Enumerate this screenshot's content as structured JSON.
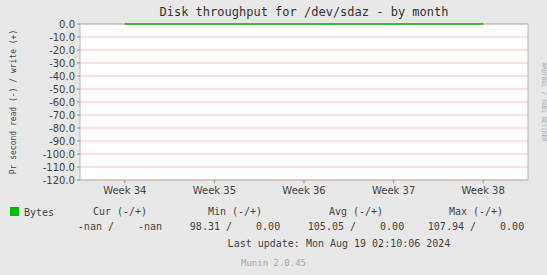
{
  "chart_data": {
    "type": "line",
    "title": "Disk throughput for /dev/sdaz - by month",
    "y_label": "Pr second read (-) / write (+)",
    "categories": [
      "Week 34",
      "Week 35",
      "Week 36",
      "Week 37",
      "Week 38"
    ],
    "series": [
      {
        "name": "Bytes",
        "color": "#00bb00",
        "values": [
          0,
          0,
          0,
          0,
          0
        ]
      }
    ],
    "ylim": [
      -120,
      0
    ],
    "yticks": [
      {
        "value": 0,
        "label": "0.0"
      },
      {
        "value": -10,
        "label": "-10.0"
      },
      {
        "value": -20,
        "label": "-20.0"
      },
      {
        "value": -30,
        "label": "-30.0"
      },
      {
        "value": -40,
        "label": "-40.0"
      },
      {
        "value": -50,
        "label": "-50.0"
      },
      {
        "value": -60,
        "label": "-60.0"
      },
      {
        "value": -70,
        "label": "-70.0"
      },
      {
        "value": -80,
        "label": "-80.0"
      },
      {
        "value": -90,
        "label": "-90.0"
      },
      {
        "value": -100,
        "label": "-100.0"
      },
      {
        "value": -110,
        "label": "-110.0"
      },
      {
        "value": -120,
        "label": "-120.0"
      }
    ],
    "grid": true,
    "side_label": "RRDTOOL / TOBI OETIKER",
    "stats": {
      "headers": [
        "Cur (-/+)",
        "Min (-/+)",
        "Avg (-/+)",
        "Max (-/+)"
      ],
      "values": [
        "-nan /    -nan",
        "98.31 /    0.00",
        "105.05 /    0.00",
        "107.94 /    0.00"
      ]
    },
    "footer": [
      "Last update: Mon Aug 19 02:10:06 2024",
      "Munin 2.0.45"
    ]
  }
}
